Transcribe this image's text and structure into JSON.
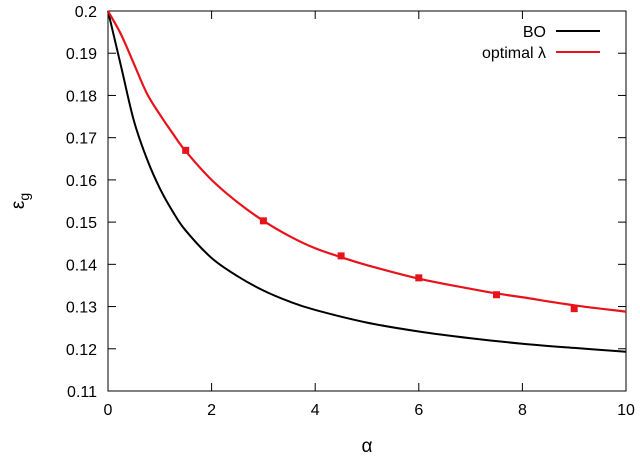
{
  "chart_data": {
    "type": "line",
    "title": "",
    "xlabel": "α",
    "ylabel": "ε",
    "ylabel_subscript": "g",
    "xlim": [
      0,
      10
    ],
    "ylim": [
      0.11,
      0.2
    ],
    "x_ticks": [
      0,
      2,
      4,
      6,
      8,
      10
    ],
    "x_tick_labels": [
      "0",
      "2",
      "4",
      "6",
      "8",
      "10"
    ],
    "y_ticks": [
      0.11,
      0.12,
      0.13,
      0.14,
      0.15,
      0.16,
      0.17,
      0.18,
      0.19,
      0.2
    ],
    "y_tick_labels": [
      "0.11",
      "0.12",
      "0.13",
      "0.14",
      "0.15",
      "0.16",
      "0.17",
      "0.18",
      "0.19",
      "0.2"
    ],
    "grid": false,
    "legend_position": "top-right",
    "series": [
      {
        "name": "BO",
        "color": "#000000",
        "x": [
          0,
          0.25,
          0.5,
          0.75,
          1,
          1.25,
          1.5,
          2,
          2.5,
          3,
          3.5,
          4,
          5,
          6,
          7,
          8,
          9,
          10
        ],
        "y": [
          0.2,
          0.187,
          0.174,
          0.165,
          0.158,
          0.1525,
          0.148,
          0.1415,
          0.1372,
          0.1338,
          0.1312,
          0.1292,
          0.1262,
          0.1241,
          0.1225,
          0.1212,
          0.1202,
          0.1193
        ]
      },
      {
        "name": "optimal λ",
        "color": "#e8121b",
        "x": [
          0,
          0.25,
          0.5,
          0.75,
          1,
          1.25,
          1.5,
          2,
          2.5,
          3,
          3.5,
          4,
          4.5,
          5,
          6,
          7,
          7.5,
          8,
          9,
          10
        ],
        "y": [
          0.2,
          0.1945,
          0.1875,
          0.1805,
          0.1755,
          0.171,
          0.1668,
          0.16,
          0.1547,
          0.1503,
          0.1467,
          0.1438,
          0.1417,
          0.1398,
          0.1366,
          0.1342,
          0.1331,
          0.1322,
          0.1303,
          0.1288
        ]
      }
    ],
    "markers": {
      "series": "optimal λ",
      "color": "#e8121b",
      "points": [
        {
          "x": 1.5,
          "y": 0.167,
          "err": 0.0008
        },
        {
          "x": 3,
          "y": 0.1503,
          "err": 0.0006
        },
        {
          "x": 4.5,
          "y": 0.142,
          "err": 0.0008
        },
        {
          "x": 6,
          "y": 0.1368,
          "err": 0.0005
        },
        {
          "x": 7.5,
          "y": 0.1328,
          "err": 0.0007
        },
        {
          "x": 9,
          "y": 0.1295,
          "err": 0.0006
        }
      ]
    }
  }
}
